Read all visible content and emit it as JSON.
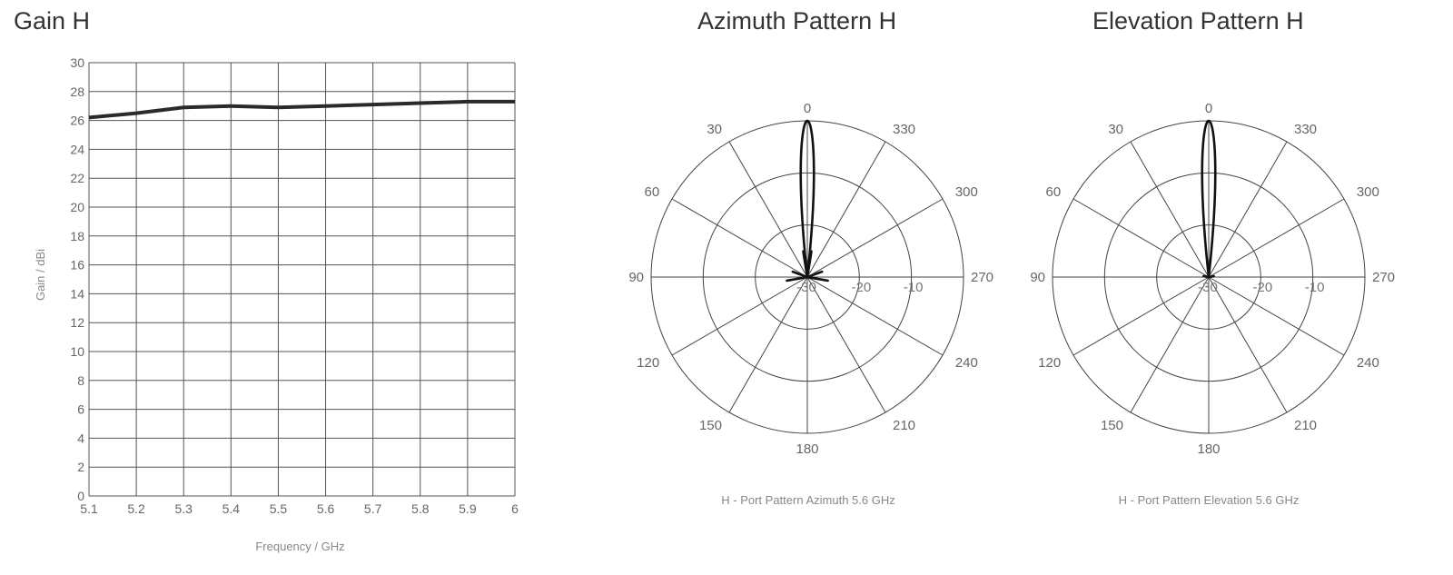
{
  "chart_data": [
    {
      "type": "line",
      "title": "Gain H",
      "xlabel": "Frequency / GHz",
      "ylabel": "Gain / dBi",
      "x": [
        5.1,
        5.2,
        5.3,
        5.4,
        5.5,
        5.6,
        5.7,
        5.8,
        5.9,
        6.0
      ],
      "xticks": [
        "5.1",
        "5.2",
        "5.3",
        "5.4",
        "5.5",
        "5.6",
        "5.7",
        "5.8",
        "5.9",
        "6"
      ],
      "series": [
        {
          "values": [
            26.2,
            26.5,
            26.9,
            27.0,
            26.9,
            27.0,
            27.1,
            27.2,
            27.3,
            27.3
          ]
        }
      ],
      "xlim": [
        5.1,
        6.0
      ],
      "ylim": [
        0,
        30
      ],
      "yticks": [
        "0",
        "2",
        "4",
        "6",
        "8",
        "10",
        "12",
        "14",
        "16",
        "18",
        "20",
        "22",
        "24",
        "26",
        "28",
        "30"
      ],
      "grid": true,
      "line_color": "#2a2a2a"
    },
    {
      "type": "polar",
      "title": "Azimuth Pattern H",
      "caption": "H - Port Pattern Azimuth 5.6 GHz",
      "angle_labels": [
        "0",
        "330",
        "300",
        "270",
        "240",
        "210",
        "180",
        "150",
        "120",
        "90",
        "60",
        "30"
      ],
      "angle_direction": "counterclockwise",
      "radial_labels": [
        "-30",
        "-20",
        "-10"
      ],
      "radial_range": [
        -30,
        0
      ],
      "grid": true,
      "pattern": {
        "main_lobe_width_deg": 4,
        "side_lobes": [
          {
            "angle": 2,
            "level": -16
          },
          {
            "angle": -2,
            "level": -16
          },
          {
            "angle": 3,
            "level": -19
          },
          {
            "angle": -3,
            "level": -19
          },
          {
            "angle": 5,
            "level": -23
          },
          {
            "angle": -5,
            "level": -23
          },
          {
            "angle": 9,
            "level": -25
          },
          {
            "angle": -9,
            "level": -25
          },
          {
            "angle": 70,
            "level": -27
          },
          {
            "angle": -70,
            "level": -27
          },
          {
            "angle": 100,
            "level": -26
          },
          {
            "angle": -100,
            "level": -26
          }
        ],
        "floor_level": -30
      }
    },
    {
      "type": "polar",
      "title": "Elevation Pattern H",
      "caption": "H - Port Pattern Elevation 5.6 GHz",
      "angle_labels": [
        "0",
        "330",
        "300",
        "270",
        "240",
        "210",
        "180",
        "150",
        "120",
        "90",
        "60",
        "30"
      ],
      "angle_direction": "counterclockwise",
      "radial_labels": [
        "-30",
        "-20",
        "-10"
      ],
      "radial_range": [
        -30,
        0
      ],
      "grid": true,
      "pattern": {
        "main_lobe_width_deg": 4,
        "side_lobes": [
          {
            "angle": 2,
            "level": -17
          },
          {
            "angle": -2,
            "level": -17
          },
          {
            "angle": 4,
            "level": -24
          },
          {
            "angle": -4,
            "level": -24
          },
          {
            "angle": 80,
            "level": -29
          },
          {
            "angle": -80,
            "level": -29
          }
        ],
        "floor_level": -30
      }
    }
  ]
}
